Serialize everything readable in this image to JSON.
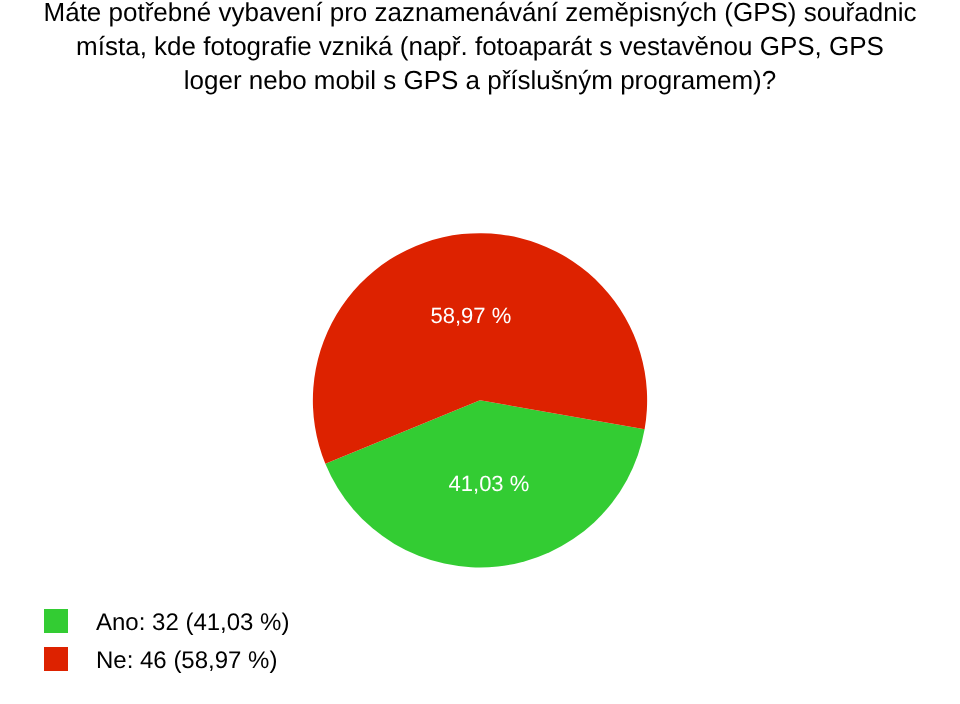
{
  "chart_data": {
    "type": "pie",
    "title": "Máte potřebné vybavení pro zaznamenávání zeměpisných (GPS) souřadnic místa, kde fotografie vzniká (např. fotoaparát s vestavěnou GPS, GPS loger nebo mobil s GPS a příslušným programem)?",
    "categories": [
      "Ano: 32 (41,03 %)",
      "Ne: 46 (58,97 %)"
    ],
    "values": [
      41.03,
      58.97
    ],
    "value_labels": [
      "41,03 %",
      "58,97 %"
    ],
    "colors": [
      "#33cc33",
      "#dd2200"
    ],
    "legend": "bottom left"
  }
}
